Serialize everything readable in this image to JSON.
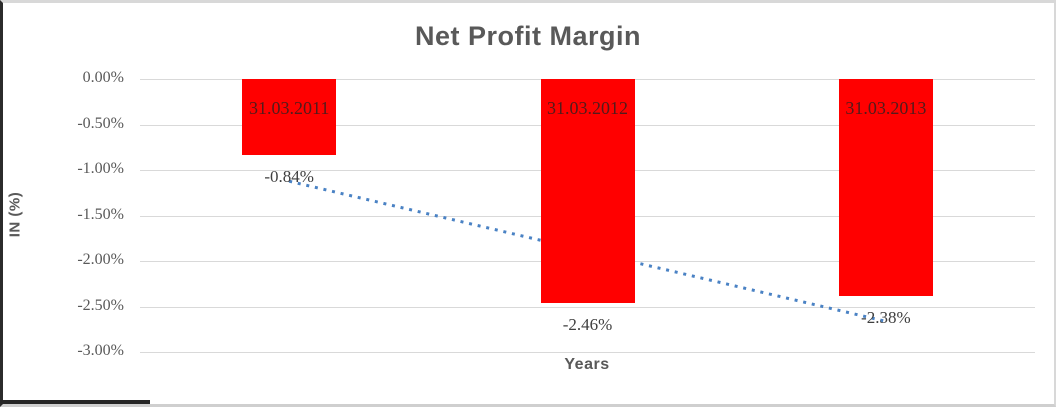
{
  "chart_data": {
    "type": "bar",
    "title": "Net Profit Margin",
    "xlabel": "Years",
    "ylabel": "IN (%)",
    "categories": [
      "31.03.2011",
      "31.03.2012",
      "31.03.2013"
    ],
    "values": [
      -0.84,
      -2.46,
      -2.38
    ],
    "value_labels": [
      "-0.84%",
      "-2.46%",
      "-2.38%"
    ],
    "ylim": [
      0,
      -3
    ],
    "ytick_values": [
      0,
      -0.5,
      -1,
      -1.5,
      -2,
      -2.5,
      -3
    ],
    "yticks": [
      "0.00%",
      "-0.50%",
      "-1.00%",
      "-1.50%",
      "-2.00%",
      "-2.50%",
      "-3.00%"
    ],
    "grid": true,
    "legend": false,
    "trendline": {
      "type": "linear",
      "style": "dotted"
    },
    "colors": {
      "bar": "#ff0000",
      "trend": "#4a82c4",
      "grid": "#d9d9d9",
      "text": "#595959",
      "value_text": "#3f3f3f"
    }
  }
}
